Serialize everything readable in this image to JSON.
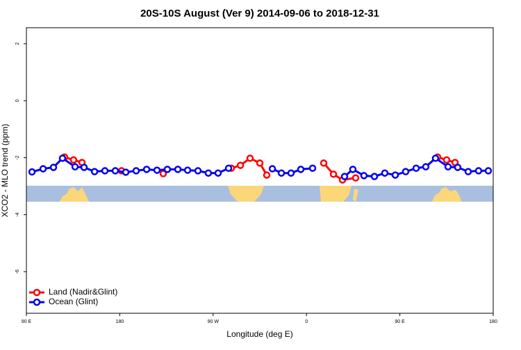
{
  "chart_data": {
    "type": "line",
    "title": "20S-10S August (Ver 9)   2014-09-06 to 2018-12-31",
    "x_label": "Longitude (deg E)",
    "y_label": "XCO2 - MLO trend (ppm)",
    "xlim": [
      90,
      540
    ],
    "xticks": [
      {
        "value": 90,
        "label": "90 E"
      },
      {
        "value": 180,
        "label": "180"
      },
      {
        "value": 270,
        "label": "90 W"
      },
      {
        "value": 360,
        "label": "0"
      },
      {
        "value": 450,
        "label": "90 E"
      },
      {
        "value": 540,
        "label": "180"
      }
    ],
    "ylim": [
      -7.46,
      2.56
    ],
    "yticks": [
      -6,
      -4,
      -2,
      0,
      2
    ],
    "legend": "bottom-left",
    "series": [
      {
        "name": "Land (Nadir&Glint)",
        "color": "#ff0000",
        "x": [
          126.8,
          135.5,
          143.6,
          null,
          181.7,
          null,
          221.9,
          null,
          287.5,
          296.3,
          305.6,
          315.0,
          321.7,
          null,
          376.6,
          386.0,
          394.7,
          407.4,
          null,
          486.4,
          495.1,
          503.2
        ],
        "values": [
          -1.98,
          -2.08,
          -2.17,
          null,
          -2.46,
          null,
          -2.56,
          null,
          -2.37,
          -2.27,
          -2.02,
          -2.19,
          -2.61,
          null,
          -2.19,
          -2.58,
          -2.78,
          -2.71,
          null,
          -1.98,
          -2.08,
          -2.17
        ]
      },
      {
        "name": "Ocean (Glint)",
        "color": "#0000ee",
        "x": [
          95.4,
          106.1,
          116.1,
          124.8,
          136.9,
          145.6,
          155.7,
          165.7,
          175.7,
          185.8,
          195.8,
          205.9,
          215.9,
          225.9,
          236.0,
          245.4,
          255.4,
          265.4,
          274.8,
          284.9,
          null,
          327.1,
          335.8,
          345.1,
          354.5,
          365.9,
          null,
          396.7,
          404.7,
          415.4,
          425.5,
          435.5,
          445.6,
          455.6,
          465.7,
          475.0,
          484.4,
          496.5,
          505.8,
          515.9,
          525.9,
          535.3
        ],
        "values": [
          -2.5,
          -2.39,
          -2.34,
          -2.02,
          -2.32,
          -2.34,
          -2.49,
          -2.46,
          -2.46,
          -2.51,
          -2.46,
          -2.41,
          -2.44,
          -2.41,
          -2.41,
          -2.44,
          -2.46,
          -2.54,
          -2.54,
          -2.37,
          null,
          -2.39,
          -2.54,
          -2.54,
          -2.41,
          -2.37,
          null,
          -2.66,
          -2.41,
          -2.63,
          -2.66,
          -2.54,
          -2.61,
          -2.49,
          -2.37,
          -2.32,
          -2.02,
          -2.32,
          -2.34,
          -2.49,
          -2.46,
          -2.46
        ]
      }
    ]
  }
}
